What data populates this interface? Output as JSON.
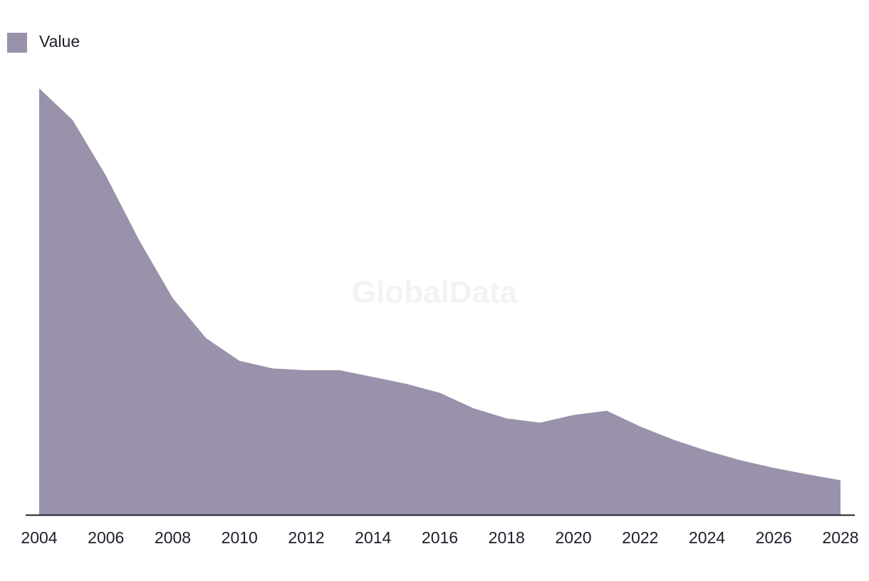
{
  "chart_data": {
    "type": "area",
    "title": "",
    "xlabel": "",
    "ylabel": "",
    "x": [
      2004,
      2005,
      2006,
      2007,
      2008,
      2009,
      2010,
      2011,
      2012,
      2013,
      2014,
      2015,
      2016,
      2017,
      2018,
      2019,
      2020,
      2021,
      2022,
      2023,
      2024,
      2025,
      2026,
      2027,
      2028
    ],
    "series": [
      {
        "name": "Value",
        "values": [
          100,
          92.6,
          79.5,
          64.3,
          50.8,
          41.4,
          36.1,
          34.3,
          33.9,
          33.9,
          32.3,
          30.7,
          28.6,
          25.0,
          22.6,
          21.6,
          23.4,
          24.4,
          20.7,
          17.6,
          15.0,
          12.8,
          11.0,
          9.5,
          8.1
        ],
        "color": "#9a91aa"
      }
    ],
    "xticks": [
      "2004",
      "2006",
      "2008",
      "2010",
      "2012",
      "2014",
      "2016",
      "2018",
      "2020",
      "2022",
      "2024",
      "2026",
      "2028"
    ],
    "ylim": [
      0,
      100
    ],
    "xlim": [
      2004,
      2028
    ],
    "grid": false,
    "legend_position": "top-left",
    "axis_color": "#1f1d2b"
  },
  "watermark": "GlobalData"
}
